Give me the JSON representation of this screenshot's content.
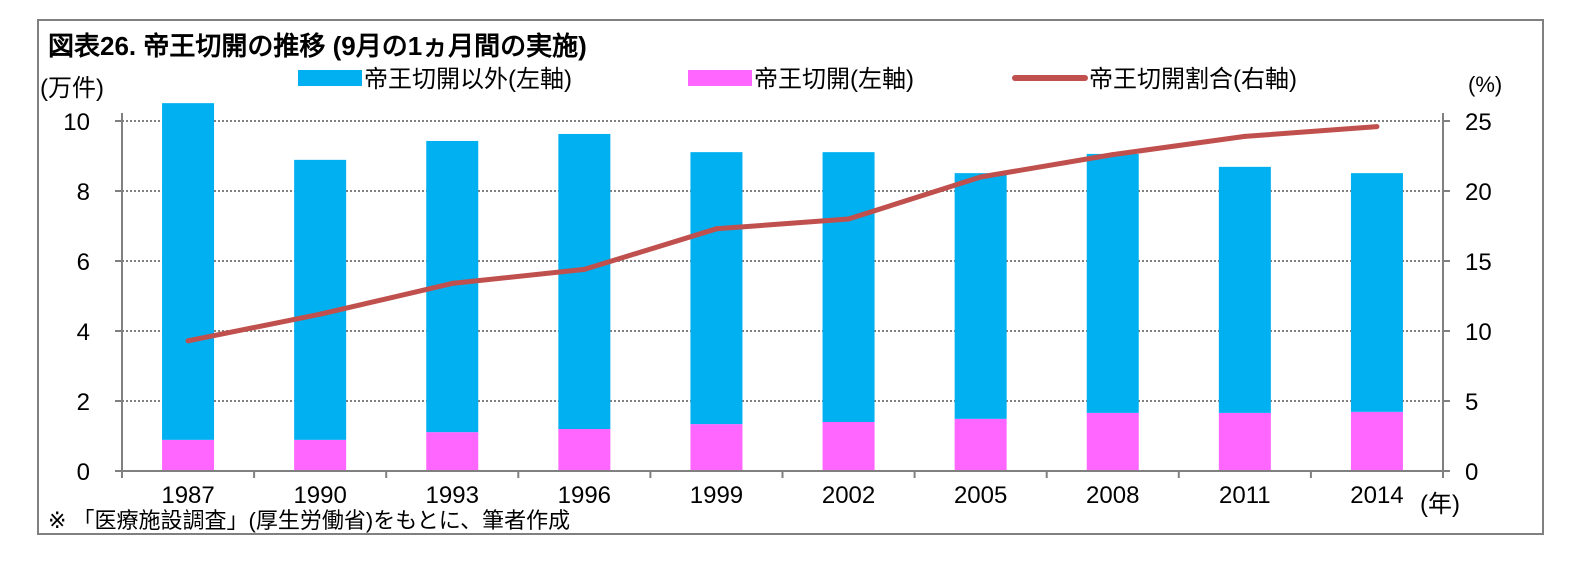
{
  "chart_data": {
    "type": "bar",
    "stacked": true,
    "title": "図表26. 帝王切開の推移 (9月の1ヵ月間の実施)",
    "ylabel_left": "(万件)",
    "ylabel_right": "(%)",
    "xlabel": "(年)",
    "note": "※ 「医療施設調査」(厚生労働省)をもとに、筆者作成",
    "categories": [
      "1987",
      "1990",
      "1993",
      "1996",
      "1999",
      "2002",
      "2005",
      "2008",
      "2011",
      "2014"
    ],
    "ylim_left": [
      0,
      10
    ],
    "yticks_left": [
      "0",
      "2",
      "4",
      "6",
      "8",
      "10"
    ],
    "ylim_right": [
      0,
      25
    ],
    "yticks_right": [
      "0",
      "5",
      "10",
      "15",
      "20",
      "25"
    ],
    "grid": true,
    "legend_placement": "top",
    "series": [
      {
        "name": "帝王切開(左軸)",
        "type": "bar",
        "axis": "left",
        "color": "#ff66ff",
        "values": [
          0.89,
          0.89,
          1.11,
          1.2,
          1.34,
          1.4,
          1.49,
          1.66,
          1.66,
          1.69
        ]
      },
      {
        "name": "帝王切開以外(左軸)",
        "type": "bar",
        "axis": "left",
        "color": "#00b0f0",
        "values": [
          9.62,
          8.0,
          8.32,
          8.43,
          7.77,
          7.71,
          7.02,
          7.4,
          7.03,
          6.82
        ]
      },
      {
        "name": "帝王切開割合(右軸)",
        "type": "line",
        "axis": "right",
        "color": "#c0504d",
        "values": [
          9.3,
          11.2,
          13.4,
          14.4,
          17.3,
          18.0,
          21.0,
          22.6,
          23.9,
          24.6
        ]
      }
    ],
    "legend_order": [
      1,
      0,
      2
    ]
  }
}
